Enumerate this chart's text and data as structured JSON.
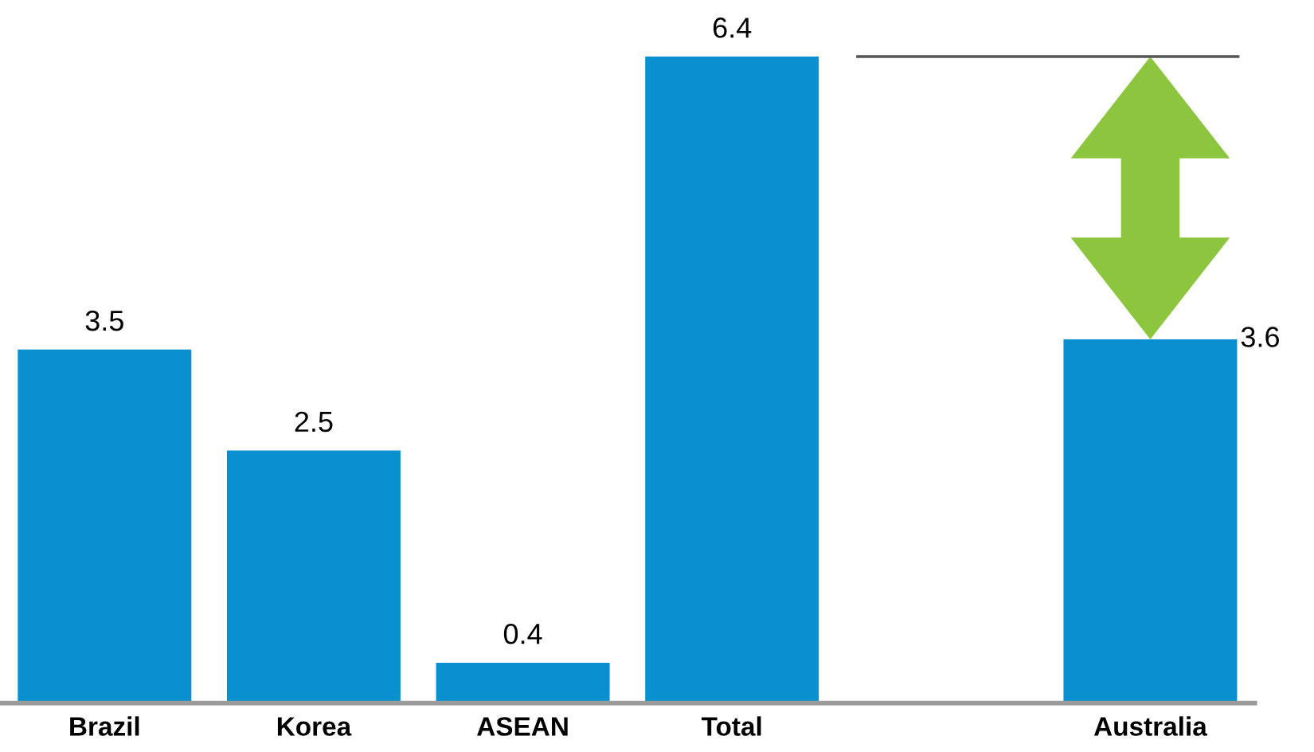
{
  "chart_data": {
    "type": "bar",
    "categories": [
      "Brazil",
      "Korea",
      "ASEAN",
      "Total",
      null,
      "Australia"
    ],
    "values": [
      3.5,
      2.5,
      0.4,
      6.4,
      null,
      3.6
    ],
    "color": "#0a8fd0",
    "data_labels": true,
    "grid": false,
    "ref_lines": [
      {
        "axis": "y",
        "value": 6.4,
        "color": "#555555"
      }
    ]
  }
}
